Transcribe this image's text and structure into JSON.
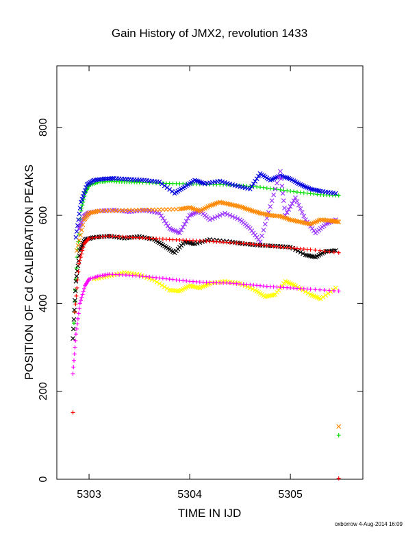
{
  "chart_data": {
    "type": "scatter",
    "title": "Gain History of JMX2, revolution 1433",
    "xlabel": "TIME IN IJD",
    "ylabel": "POSITION OF Cd CALIBRATION PEAKS",
    "xlim": [
      5302.68,
      5305.72
    ],
    "ylim": [
      0,
      940
    ],
    "x_ticks": [
      5303,
      5304,
      5305
    ],
    "x_tick_labels": [
      "5303",
      "5304",
      "5305"
    ],
    "y_ticks": [
      0,
      200,
      400,
      600,
      800
    ],
    "y_tick_labels": [
      "0",
      "200",
      "400",
      "600",
      "800"
    ],
    "grid": false,
    "legend": "none",
    "footer": "oxborrow 4-Aug-2014 16:09",
    "series": [
      {
        "color": "#00dd00",
        "marker": "plus",
        "points": [
          [
            5302.85,
            355
          ],
          [
            5302.88,
            505
          ],
          [
            5302.92,
            610
          ],
          [
            5302.96,
            650
          ],
          [
            5303.0,
            668
          ],
          [
            5303.1,
            676
          ],
          [
            5303.2,
            678
          ],
          [
            5303.35,
            676
          ],
          [
            5303.5,
            675
          ],
          [
            5303.7,
            673
          ],
          [
            5303.9,
            672
          ],
          [
            5304.1,
            671
          ],
          [
            5304.3,
            670
          ],
          [
            5304.5,
            668
          ],
          [
            5304.7,
            664
          ],
          [
            5304.9,
            658
          ],
          [
            5305.1,
            652
          ],
          [
            5305.3,
            647
          ],
          [
            5305.48,
            645
          ],
          [
            5305.48,
            100
          ]
        ]
      },
      {
        "color": "#0000dd",
        "marker": "x",
        "points": [
          [
            5302.87,
            550
          ],
          [
            5302.92,
            630
          ],
          [
            5302.98,
            670
          ],
          [
            5303.05,
            680
          ],
          [
            5303.15,
            683
          ],
          [
            5303.25,
            684
          ],
          [
            5303.4,
            682
          ],
          [
            5303.55,
            680
          ],
          [
            5303.7,
            676
          ],
          [
            5303.85,
            650
          ],
          [
            5303.95,
            665
          ],
          [
            5304.05,
            680
          ],
          [
            5304.15,
            672
          ],
          [
            5304.3,
            678
          ],
          [
            5304.45,
            668
          ],
          [
            5304.6,
            660
          ],
          [
            5304.7,
            695
          ],
          [
            5304.8,
            680
          ],
          [
            5304.9,
            690
          ],
          [
            5305.0,
            683
          ],
          [
            5305.1,
            670
          ],
          [
            5305.2,
            660
          ],
          [
            5305.3,
            655
          ],
          [
            5305.45,
            650
          ]
        ]
      },
      {
        "color": "#9933ff",
        "marker": "x",
        "points": [
          [
            5302.9,
            570
          ],
          [
            5302.95,
            598
          ],
          [
            5303.0,
            606
          ],
          [
            5303.1,
            610
          ],
          [
            5303.25,
            612
          ],
          [
            5303.4,
            608
          ],
          [
            5303.55,
            612
          ],
          [
            5303.7,
            605
          ],
          [
            5303.8,
            570
          ],
          [
            5303.9,
            560
          ],
          [
            5304.0,
            600
          ],
          [
            5304.1,
            610
          ],
          [
            5304.2,
            590
          ],
          [
            5304.35,
            605
          ],
          [
            5304.5,
            590
          ],
          [
            5304.6,
            570
          ],
          [
            5304.7,
            540
          ],
          [
            5304.8,
            620
          ],
          [
            5304.9,
            700
          ],
          [
            5304.95,
            600
          ],
          [
            5305.05,
            640
          ],
          [
            5305.15,
            590
          ],
          [
            5305.25,
            560
          ],
          [
            5305.35,
            580
          ],
          [
            5305.45,
            590
          ]
        ]
      },
      {
        "color": "#ff8800",
        "marker": "x",
        "points": [
          [
            5302.88,
            520
          ],
          [
            5302.95,
            590
          ],
          [
            5303.0,
            605
          ],
          [
            5303.1,
            610
          ],
          [
            5303.3,
            611
          ],
          [
            5303.5,
            612
          ],
          [
            5303.7,
            613
          ],
          [
            5303.9,
            614
          ],
          [
            5304.0,
            618
          ],
          [
            5304.1,
            610
          ],
          [
            5304.2,
            622
          ],
          [
            5304.3,
            630
          ],
          [
            5304.4,
            625
          ],
          [
            5304.5,
            620
          ],
          [
            5304.6,
            612
          ],
          [
            5304.7,
            605
          ],
          [
            5304.8,
            600
          ],
          [
            5304.9,
            598
          ],
          [
            5305.0,
            590
          ],
          [
            5305.1,
            585
          ],
          [
            5305.2,
            580
          ],
          [
            5305.3,
            590
          ],
          [
            5305.4,
            588
          ],
          [
            5305.48,
            585
          ],
          [
            5305.48,
            120
          ]
        ]
      },
      {
        "color": "#000000",
        "marker": "x",
        "points": [
          [
            5302.84,
            320
          ],
          [
            5302.87,
            450
          ],
          [
            5302.91,
            520
          ],
          [
            5302.96,
            545
          ],
          [
            5303.05,
            550
          ],
          [
            5303.2,
            553
          ],
          [
            5303.35,
            548
          ],
          [
            5303.5,
            552
          ],
          [
            5303.65,
            545
          ],
          [
            5303.75,
            530
          ],
          [
            5303.85,
            515
          ],
          [
            5303.95,
            540
          ],
          [
            5304.05,
            535
          ],
          [
            5304.2,
            545
          ],
          [
            5304.4,
            540
          ],
          [
            5304.55,
            535
          ],
          [
            5304.7,
            532
          ],
          [
            5304.85,
            530
          ],
          [
            5305.0,
            528
          ],
          [
            5305.15,
            510
          ],
          [
            5305.25,
            505
          ],
          [
            5305.35,
            518
          ],
          [
            5305.45,
            520
          ]
        ]
      },
      {
        "color": "#ff0000",
        "marker": "plus",
        "points": [
          [
            5302.84,
            152
          ],
          [
            5302.86,
            380
          ],
          [
            5302.9,
            490
          ],
          [
            5302.95,
            535
          ],
          [
            5303.0,
            548
          ],
          [
            5303.2,
            553
          ],
          [
            5303.4,
            550
          ],
          [
            5303.6,
            548
          ],
          [
            5303.8,
            545
          ],
          [
            5304.0,
            543
          ],
          [
            5304.2,
            541
          ],
          [
            5304.4,
            538
          ],
          [
            5304.6,
            535
          ],
          [
            5304.8,
            530
          ],
          [
            5305.0,
            526
          ],
          [
            5305.2,
            522
          ],
          [
            5305.48,
            515
          ],
          [
            5305.48,
            2
          ]
        ]
      },
      {
        "color": "#ffff00",
        "marker": "x",
        "points": [
          [
            5303.05,
            455
          ],
          [
            5303.2,
            462
          ],
          [
            5303.35,
            470
          ],
          [
            5303.5,
            465
          ],
          [
            5303.65,
            452
          ],
          [
            5303.8,
            430
          ],
          [
            5303.9,
            428
          ],
          [
            5304.0,
            440
          ],
          [
            5304.1,
            435
          ],
          [
            5304.2,
            445
          ],
          [
            5304.35,
            450
          ],
          [
            5304.5,
            445
          ],
          [
            5304.65,
            430
          ],
          [
            5304.75,
            415
          ],
          [
            5304.85,
            420
          ],
          [
            5304.95,
            450
          ],
          [
            5305.05,
            440
          ],
          [
            5305.2,
            420
          ],
          [
            5305.3,
            410
          ],
          [
            5305.45,
            435
          ]
        ]
      },
      {
        "color": "#ff00ff",
        "marker": "plus",
        "points": [
          [
            5302.84,
            240
          ],
          [
            5302.87,
            330
          ],
          [
            5302.91,
            400
          ],
          [
            5302.96,
            440
          ],
          [
            5303.0,
            455
          ],
          [
            5303.1,
            462
          ],
          [
            5303.2,
            466
          ],
          [
            5303.4,
            464
          ],
          [
            5303.6,
            460
          ],
          [
            5303.8,
            455
          ],
          [
            5304.0,
            450
          ],
          [
            5304.2,
            447
          ],
          [
            5304.4,
            446
          ],
          [
            5304.6,
            442
          ],
          [
            5304.8,
            438
          ],
          [
            5305.0,
            435
          ],
          [
            5305.2,
            432
          ],
          [
            5305.48,
            428
          ]
        ]
      }
    ]
  }
}
